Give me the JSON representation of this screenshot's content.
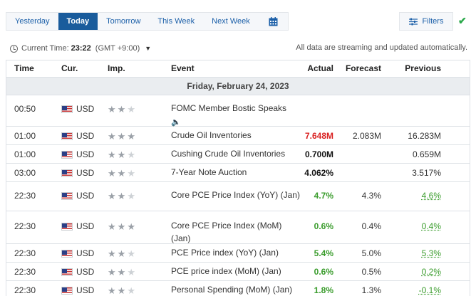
{
  "tabs": [
    "Yesterday",
    "Today",
    "Tomorrow",
    "This Week",
    "Next Week"
  ],
  "active_tab": "Today",
  "filters_label": "Filters",
  "current_time": {
    "label": "Current Time:",
    "time": "23:22",
    "tz": "(GMT +9:00)"
  },
  "notice": "All data are streaming and updated automatically.",
  "columns": {
    "time": "Time",
    "cur": "Cur.",
    "imp": "Imp.",
    "event": "Event",
    "actual": "Actual",
    "forecast": "Forecast",
    "previous": "Previous"
  },
  "date": "Friday, February 24, 2023",
  "rows": [
    {
      "time": "00:50",
      "cur": "USD",
      "imp": 2,
      "event": "FOMC Member Bostic Speaks",
      "speech": true,
      "actual": "",
      "actual_color": "",
      "forecast": "",
      "previous": "",
      "previous_color": ""
    },
    {
      "time": "01:00",
      "cur": "USD",
      "imp": 3,
      "event": "Crude Oil Inventories",
      "actual": "7.648M",
      "actual_color": "red",
      "forecast": "2.083M",
      "previous": "16.283M",
      "previous_color": ""
    },
    {
      "time": "01:00",
      "cur": "USD",
      "imp": 2,
      "event": "Cushing Crude Oil Inventories",
      "actual": "0.700M",
      "actual_color": "black",
      "forecast": "",
      "previous": "0.659M",
      "previous_color": ""
    },
    {
      "time": "03:00",
      "cur": "USD",
      "imp": 2,
      "event": "7-Year Note Auction",
      "actual": "4.062%",
      "actual_color": "black",
      "forecast": "",
      "previous": "3.517%",
      "previous_color": ""
    },
    {
      "time": "22:30",
      "cur": "USD",
      "imp": 2,
      "event": "Core PCE Price Index (YoY) (Jan)",
      "actual": "4.7%",
      "actual_color": "green",
      "forecast": "4.3%",
      "previous": "4.6%",
      "previous_color": "green"
    },
    {
      "time": "22:30",
      "cur": "USD",
      "imp": 3,
      "event": "Core PCE Price Index (MoM) (Jan)",
      "actual": "0.6%",
      "actual_color": "green",
      "forecast": "0.4%",
      "previous": "0.4%",
      "previous_color": "green"
    },
    {
      "time": "22:30",
      "cur": "USD",
      "imp": 2,
      "event": "PCE Price index (YoY) (Jan)",
      "actual": "5.4%",
      "actual_color": "green",
      "forecast": "5.0%",
      "previous": "5.3%",
      "previous_color": "green"
    },
    {
      "time": "22:30",
      "cur": "USD",
      "imp": 2,
      "event": "PCE price index (MoM) (Jan)",
      "actual": "0.6%",
      "actual_color": "green",
      "forecast": "0.5%",
      "previous": "0.2%",
      "previous_color": "green"
    },
    {
      "time": "22:30",
      "cur": "USD",
      "imp": 2,
      "event": "Personal Spending (MoM) (Jan)",
      "actual": "1.8%",
      "actual_color": "green",
      "forecast": "1.3%",
      "previous": "-0.1%",
      "previous_color": "green"
    }
  ]
}
